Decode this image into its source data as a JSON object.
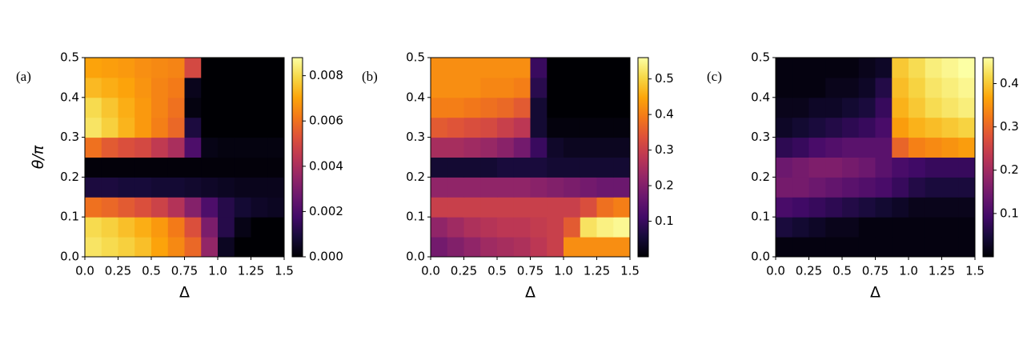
{
  "chart_data": [
    {
      "type": "heatmap",
      "panel_label": "(a)",
      "xlabel": "Δ",
      "ylabel": "θ/π",
      "colormap": "inferno",
      "x": [
        0.0625,
        0.1875,
        0.3125,
        0.4375,
        0.5625,
        0.6875,
        0.8125,
        0.9375,
        1.0625,
        1.1875,
        1.3125,
        1.4375
      ],
      "y": [
        0.025,
        0.075,
        0.125,
        0.175,
        0.225,
        0.275,
        0.325,
        0.375,
        0.425,
        0.475
      ],
      "values": [
        [
          0.0082,
          0.008,
          0.0078,
          0.0075,
          0.007,
          0.0065,
          0.0058,
          0.0035,
          0.0005,
          0,
          0,
          0
        ],
        [
          0.008,
          0.0078,
          0.0075,
          0.0072,
          0.0068,
          0.0062,
          0.0052,
          0.003,
          0.0012,
          0.0003,
          0,
          0
        ],
        [
          0.006,
          0.0058,
          0.0055,
          0.0052,
          0.0048,
          0.0042,
          0.0032,
          0.002,
          0.0012,
          0.0008,
          0.0006,
          0.0005
        ],
        [
          0.001,
          0.001,
          0.0009,
          0.0009,
          0.0008,
          0.0008,
          0.0007,
          0.0006,
          0.0005,
          0.0004,
          0.0004,
          0.0004
        ],
        [
          0.0001,
          0.0001,
          0.0001,
          0.0001,
          0.0001,
          0.0001,
          0.0001,
          0.0001,
          0.0001,
          0.0001,
          0.0001,
          0.0001
        ],
        [
          0.006,
          0.0055,
          0.0052,
          0.005,
          0.0045,
          0.004,
          0.002,
          0.0003,
          0.0002,
          0.0002,
          0.0002,
          0.0002
        ],
        [
          0.0082,
          0.0078,
          0.0073,
          0.0068,
          0.0063,
          0.0058,
          0.001,
          0,
          0,
          0,
          0,
          0
        ],
        [
          0.008,
          0.0076,
          0.0072,
          0.0068,
          0.0064,
          0.006,
          0.0002,
          0,
          0,
          0,
          0,
          0
        ],
        [
          0.0074,
          0.0072,
          0.007,
          0.0067,
          0.0064,
          0.0062,
          0.0004,
          0,
          0,
          0,
          0,
          0
        ],
        [
          0.007,
          0.0069,
          0.0068,
          0.0066,
          0.0065,
          0.0064,
          0.005,
          0,
          0,
          0,
          0,
          0
        ]
      ],
      "xlim": [
        0,
        1.5
      ],
      "ylim": [
        0,
        0.5
      ],
      "clim": [
        0,
        0.0088
      ],
      "xticks": [
        {
          "value": 0,
          "label": "0.0"
        },
        0.25,
        0.5,
        0.75,
        {
          "value": 1,
          "label": "1.0"
        },
        1.25,
        1.5
      ],
      "yticks": [
        {
          "value": 0,
          "label": "0.0"
        },
        0.1,
        0.2,
        0.3,
        0.4,
        0.5
      ],
      "cticks": [
        {
          "value": 0,
          "label": "0.000"
        },
        0.002,
        0.004,
        0.006,
        0.008
      ]
    },
    {
      "type": "heatmap",
      "panel_label": "(b)",
      "xlabel": "Δ",
      "colormap": "inferno",
      "x": [
        0.0625,
        0.1875,
        0.3125,
        0.4375,
        0.5625,
        0.6875,
        0.8125,
        0.9375,
        1.0625,
        1.1875,
        1.3125,
        1.4375
      ],
      "y": [
        0.025,
        0.075,
        0.125,
        0.175,
        0.225,
        0.275,
        0.325,
        0.375,
        0.425,
        0.475
      ],
      "values": [
        [
          0.18,
          0.2,
          0.22,
          0.24,
          0.25,
          0.26,
          0.28,
          0.3,
          0.42,
          0.42,
          0.42,
          0.42
        ],
        [
          0.22,
          0.24,
          0.26,
          0.27,
          0.28,
          0.28,
          0.29,
          0.3,
          0.35,
          0.52,
          0.54,
          0.55
        ],
        [
          0.3,
          0.3,
          0.3,
          0.3,
          0.3,
          0.3,
          0.3,
          0.3,
          0.3,
          0.33,
          0.38,
          0.4
        ],
        [
          0.22,
          0.22,
          0.22,
          0.22,
          0.22,
          0.22,
          0.21,
          0.2,
          0.19,
          0.18,
          0.17,
          0.17
        ],
        [
          0.05,
          0.05,
          0.05,
          0.05,
          0.06,
          0.06,
          0.06,
          0.05,
          0.05,
          0.05,
          0.05,
          0.05
        ],
        [
          0.25,
          0.25,
          0.24,
          0.23,
          0.21,
          0.18,
          0.1,
          0.04,
          0.03,
          0.03,
          0.03,
          0.03
        ],
        [
          0.35,
          0.34,
          0.33,
          0.32,
          0.3,
          0.28,
          0.05,
          0.01,
          0.01,
          0.01,
          0.01,
          0.01
        ],
        [
          0.4,
          0.4,
          0.39,
          0.38,
          0.37,
          0.35,
          0.05,
          0,
          0,
          0,
          0,
          0
        ],
        [
          0.42,
          0.42,
          0.42,
          0.41,
          0.41,
          0.4,
          0.08,
          0,
          0,
          0,
          0,
          0
        ],
        [
          0.42,
          0.42,
          0.42,
          0.42,
          0.42,
          0.42,
          0.1,
          0,
          0,
          0,
          0,
          0
        ]
      ],
      "xlim": [
        0,
        1.5
      ],
      "ylim": [
        0,
        0.5
      ],
      "clim": [
        0,
        0.56
      ],
      "xticks": [
        {
          "value": 0,
          "label": "0.0"
        },
        0.25,
        0.5,
        0.75,
        {
          "value": 1,
          "label": "1.0"
        },
        1.25,
        1.5
      ],
      "yticks": [
        {
          "value": 0,
          "label": "0.0"
        },
        0.1,
        0.2,
        0.3,
        0.4,
        0.5
      ],
      "cticks": [
        0.1,
        0.2,
        0.3,
        0.4,
        0.5
      ]
    },
    {
      "type": "heatmap",
      "panel_label": "(c)",
      "xlabel": "Δ",
      "colormap": "inferno",
      "x": [
        0.0625,
        0.1875,
        0.3125,
        0.4375,
        0.5625,
        0.6875,
        0.8125,
        0.9375,
        1.0625,
        1.1875,
        1.3125,
        1.4375
      ],
      "y": [
        0.025,
        0.075,
        0.125,
        0.175,
        0.225,
        0.275,
        0.325,
        0.375,
        0.425,
        0.475
      ],
      "values": [
        [
          0.01,
          0.01,
          0.01,
          0.01,
          0.01,
          0.01,
          0.01,
          0.01,
          0.01,
          0.01,
          0.01,
          0.01
        ],
        [
          0.05,
          0.04,
          0.03,
          0.02,
          0.02,
          0.01,
          0.01,
          0.01,
          0.01,
          0.01,
          0.01,
          0.01
        ],
        [
          0.1,
          0.09,
          0.08,
          0.07,
          0.06,
          0.05,
          0.04,
          0.03,
          0.02,
          0.02,
          0.02,
          0.02
        ],
        [
          0.15,
          0.15,
          0.14,
          0.13,
          0.12,
          0.11,
          0.1,
          0.08,
          0.06,
          0.05,
          0.05,
          0.05
        ],
        [
          0.14,
          0.15,
          0.16,
          0.16,
          0.15,
          0.14,
          0.12,
          0.1,
          0.09,
          0.08,
          0.08,
          0.08
        ],
        [
          0.07,
          0.08,
          0.1,
          0.11,
          0.12,
          0.12,
          0.12,
          0.3,
          0.33,
          0.34,
          0.35,
          0.36
        ],
        [
          0.03,
          0.04,
          0.05,
          0.06,
          0.07,
          0.08,
          0.1,
          0.36,
          0.38,
          0.39,
          0.4,
          0.41
        ],
        [
          0.02,
          0.02,
          0.03,
          0.03,
          0.04,
          0.05,
          0.08,
          0.38,
          0.4,
          0.42,
          0.43,
          0.44
        ],
        [
          0.01,
          0.01,
          0.01,
          0.02,
          0.02,
          0.03,
          0.06,
          0.39,
          0.41,
          0.43,
          0.44,
          0.45
        ],
        [
          0.01,
          0.01,
          0.01,
          0.01,
          0.01,
          0.02,
          0.03,
          0.4,
          0.42,
          0.44,
          0.45,
          0.46
        ]
      ],
      "xlim": [
        0,
        1.5
      ],
      "ylim": [
        0,
        0.5
      ],
      "clim": [
        0,
        0.46
      ],
      "xticks": [
        {
          "value": 0,
          "label": "0.0"
        },
        0.25,
        0.5,
        0.75,
        {
          "value": 1,
          "label": "1.0"
        },
        1.25,
        1.5
      ],
      "yticks": [
        {
          "value": 0,
          "label": "0.0"
        },
        0.1,
        0.2,
        0.3,
        0.4,
        0.5
      ],
      "cticks": [
        0.1,
        0.2,
        0.3,
        0.4
      ]
    }
  ]
}
